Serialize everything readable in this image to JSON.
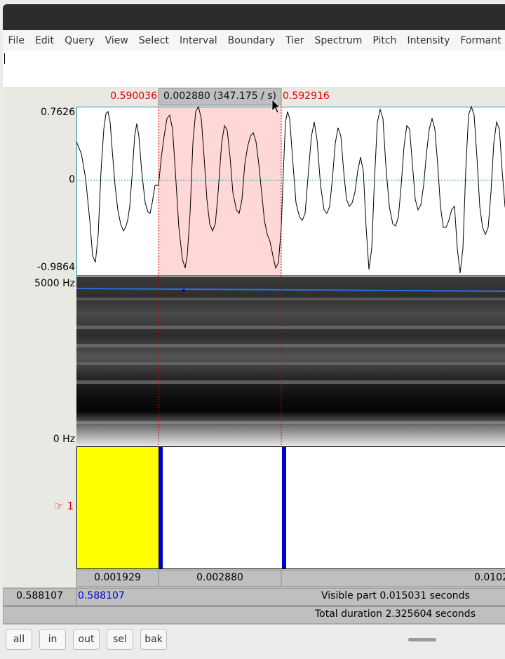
{
  "menu": [
    "File",
    "Edit",
    "Query",
    "View",
    "Select",
    "Interval",
    "Boundary",
    "Tier",
    "Spectrum",
    "Pitch",
    "Intensity",
    "Formant"
  ],
  "selection": {
    "start": "0.590036",
    "end": "0.592916",
    "length_label": "0.002880 (347.175 / s)"
  },
  "waveform": {
    "max": "0.7626",
    "zero": "0",
    "min": "-0.9864"
  },
  "spectrogram": {
    "top": "5000 Hz",
    "bottom": "0 Hz"
  },
  "tier": {
    "label": "☞ 1"
  },
  "intervals": [
    "0.001929",
    "0.002880",
    "0.0102"
  ],
  "cursor": {
    "left": "0.588107",
    "right": "0.588107"
  },
  "visible_part": "Visible part 0.015031 seconds",
  "total_duration": "Total duration 2.325604 seconds",
  "buttons": {
    "all": "all",
    "in": "in",
    "out": "out",
    "sel": "sel",
    "bak": "bak"
  },
  "colors": {
    "selection": "#ffd7d7",
    "interval_selected": "#ffff00",
    "boundary": "#0000cc",
    "time_red": "#e00000"
  }
}
